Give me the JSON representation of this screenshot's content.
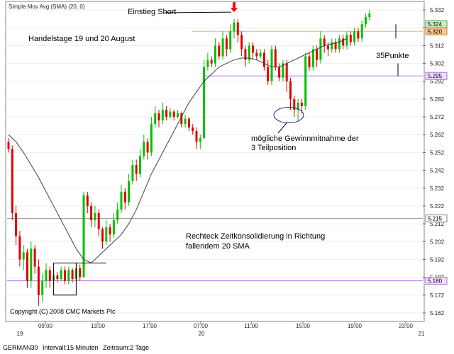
{
  "indicator_label": "Simple Mov Avg (SMA) (20, 0)",
  "copyright": "Copyright (C) 2008 CMC Markets Plc",
  "status_bar": {
    "symbol": "GERMAN30",
    "interval": "Intervall:15 Minuten",
    "period": "Zeitraum:2 Tage"
  },
  "annotations": {
    "entry": "Einstieg Short",
    "days": "Handelstage 19 und 20 August",
    "points": "35Punkte",
    "take_profit_1": "mögliche Gewinnmitnahme der",
    "take_profit_2": "3 Teilposition",
    "consolidation_1": "Rechteck Zeitkonsolidierung in Richtung",
    "consolidation_2": "fallendem 20 SMA"
  },
  "colors": {
    "up": "#00c000",
    "down": "#e00000",
    "sma": "#404040",
    "orange_line": "#f0b070",
    "purple_line": "#b070e0",
    "grey_line": "#a0a0a0",
    "blue_tag": "#cfe8ff",
    "arrow": "#ff0000"
  },
  "chart_data": {
    "type": "candlestick",
    "y_ticks": [
      5162,
      5172,
      5182,
      5192,
      5202,
      5212,
      5222,
      5232,
      5242,
      5252,
      5262,
      5272,
      5282,
      5292,
      5302,
      5312,
      5322,
      5332
    ],
    "ylim": [
      5158,
      5336
    ],
    "x_top_labels": [
      "09:00",
      "13:00",
      "17:00",
      "07:00",
      "11:00",
      "15:00",
      "19:00",
      "23:00"
    ],
    "x_bottom_labels": [
      "19",
      "20",
      "21"
    ],
    "price_tags": [
      {
        "value": 5324,
        "label": "5.324",
        "style": "green"
      },
      {
        "value": 5320,
        "label": "5.320",
        "style": "orange"
      },
      {
        "value": 5295,
        "label": "5.295",
        "style": "purple"
      },
      {
        "value": 5215,
        "label": "5.215",
        "style": "grey"
      },
      {
        "value": 5180,
        "label": "5.180",
        "style": "purple"
      }
    ],
    "horizontal_lines": [
      {
        "value": 5320,
        "style": "orange"
      },
      {
        "value": 5295,
        "style": "purple"
      },
      {
        "value": 5215,
        "style": "grey"
      },
      {
        "value": 5180,
        "style": "purple"
      }
    ],
    "candles": [
      [
        5258,
        5254,
        5260,
        5252
      ],
      [
        5254,
        5218,
        5256,
        5214
      ],
      [
        5218,
        5205,
        5222,
        5200
      ],
      [
        5205,
        5192,
        5208,
        5188
      ],
      [
        5192,
        5196,
        5200,
        5186
      ],
      [
        5196,
        5180,
        5198,
        5176
      ],
      [
        5180,
        5198,
        5202,
        5176
      ],
      [
        5198,
        5188,
        5200,
        5184
      ],
      [
        5188,
        5172,
        5192,
        5166
      ],
      [
        5172,
        5180,
        5184,
        5168
      ],
      [
        5180,
        5186,
        5190,
        5176
      ],
      [
        5186,
        5180,
        5188,
        5176
      ],
      [
        5180,
        5183,
        5186,
        5178
      ],
      [
        5183,
        5181,
        5185,
        5179
      ],
      [
        5181,
        5186,
        5188,
        5180
      ],
      [
        5186,
        5180,
        5188,
        5178
      ],
      [
        5180,
        5186,
        5188,
        5178
      ],
      [
        5186,
        5181,
        5187,
        5179
      ],
      [
        5181,
        5187,
        5190,
        5180
      ],
      [
        5187,
        5182,
        5189,
        5180
      ],
      [
        5182,
        5228,
        5230,
        5182
      ],
      [
        5228,
        5222,
        5230,
        5218
      ],
      [
        5222,
        5214,
        5224,
        5210
      ],
      [
        5214,
        5218,
        5222,
        5210
      ],
      [
        5218,
        5209,
        5220,
        5205
      ],
      [
        5209,
        5202,
        5210,
        5198
      ],
      [
        5202,
        5210,
        5214,
        5200
      ],
      [
        5210,
        5206,
        5212,
        5202
      ],
      [
        5206,
        5214,
        5218,
        5204
      ],
      [
        5214,
        5220,
        5224,
        5212
      ],
      [
        5220,
        5230,
        5234,
        5218
      ],
      [
        5230,
        5224,
        5232,
        5220
      ],
      [
        5224,
        5236,
        5240,
        5222
      ],
      [
        5236,
        5245,
        5248,
        5234
      ],
      [
        5245,
        5240,
        5248,
        5236
      ],
      [
        5240,
        5250,
        5254,
        5238
      ],
      [
        5250,
        5258,
        5262,
        5248
      ],
      [
        5258,
        5252,
        5260,
        5248
      ],
      [
        5252,
        5268,
        5272,
        5250
      ],
      [
        5268,
        5274,
        5278,
        5266
      ],
      [
        5274,
        5270,
        5276,
        5266
      ],
      [
        5270,
        5276,
        5280,
        5268
      ],
      [
        5276,
        5272,
        5278,
        5270
      ],
      [
        5272,
        5275,
        5277,
        5271
      ],
      [
        5275,
        5272,
        5276,
        5270
      ],
      [
        5272,
        5274,
        5276,
        5271
      ],
      [
        5274,
        5268,
        5275,
        5266
      ],
      [
        5268,
        5271,
        5273,
        5266
      ],
      [
        5271,
        5266,
        5272,
        5264
      ],
      [
        5266,
        5264,
        5268,
        5262
      ],
      [
        5264,
        5258,
        5266,
        5254
      ],
      [
        5258,
        5260,
        5262,
        5254
      ],
      [
        5260,
        5300,
        5304,
        5260
      ],
      [
        5300,
        5304,
        5308,
        5298
      ],
      [
        5304,
        5302,
        5306,
        5300
      ],
      [
        5302,
        5312,
        5316,
        5300
      ],
      [
        5312,
        5306,
        5314,
        5304
      ],
      [
        5306,
        5316,
        5320,
        5304
      ],
      [
        5316,
        5310,
        5318,
        5306
      ],
      [
        5310,
        5320,
        5324,
        5308
      ],
      [
        5320,
        5325,
        5327,
        5316
      ],
      [
        5325,
        5318,
        5327,
        5314
      ],
      [
        5318,
        5310,
        5320,
        5306
      ],
      [
        5310,
        5304,
        5312,
        5300
      ],
      [
        5304,
        5312,
        5314,
        5302
      ],
      [
        5312,
        5308,
        5314,
        5304
      ],
      [
        5308,
        5306,
        5310,
        5304
      ],
      [
        5306,
        5308,
        5310,
        5305
      ],
      [
        5308,
        5300,
        5310,
        5298
      ],
      [
        5300,
        5292,
        5304,
        5290
      ],
      [
        5292,
        5310,
        5312,
        5290
      ],
      [
        5310,
        5300,
        5312,
        5298
      ],
      [
        5300,
        5294,
        5302,
        5292
      ],
      [
        5294,
        5302,
        5304,
        5292
      ],
      [
        5302,
        5292,
        5304,
        5286
      ],
      [
        5292,
        5282,
        5294,
        5276
      ],
      [
        5282,
        5276,
        5284,
        5272
      ],
      [
        5276,
        5280,
        5282,
        5270
      ],
      [
        5280,
        5278,
        5282,
        5274
      ],
      [
        5278,
        5306,
        5308,
        5276
      ],
      [
        5306,
        5300,
        5308,
        5298
      ],
      [
        5300,
        5310,
        5312,
        5298
      ],
      [
        5310,
        5304,
        5312,
        5300
      ],
      [
        5304,
        5316,
        5320,
        5302
      ],
      [
        5316,
        5312,
        5318,
        5308
      ],
      [
        5312,
        5310,
        5314,
        5306
      ],
      [
        5310,
        5314,
        5316,
        5308
      ],
      [
        5314,
        5310,
        5316,
        5308
      ],
      [
        5310,
        5316,
        5318,
        5308
      ],
      [
        5316,
        5312,
        5318,
        5310
      ],
      [
        5312,
        5318,
        5320,
        5310
      ],
      [
        5318,
        5314,
        5320,
        5312
      ],
      [
        5314,
        5320,
        5322,
        5312
      ],
      [
        5320,
        5316,
        5322,
        5314
      ],
      [
        5316,
        5324,
        5326,
        5314
      ],
      [
        5324,
        5328,
        5330,
        5322
      ],
      [
        5328,
        5330,
        5332,
        5326
      ]
    ],
    "sma": [
      5262,
      5258,
      5252,
      5245,
      5238,
      5230,
      5222,
      5214,
      5206,
      5198,
      5192,
      5190,
      5194,
      5198,
      5202,
      5206,
      5212,
      5220,
      5230,
      5240,
      5248,
      5256,
      5264,
      5272,
      5280,
      5286,
      5292,
      5296,
      5300,
      5302,
      5304,
      5305,
      5305,
      5304,
      5302,
      5300,
      5300,
      5302,
      5304,
      5306,
      5308,
      5310,
      5312,
      5313,
      5314,
      5316
    ],
    "sma_start_index": 0,
    "sma_step": 2,
    "box": {
      "x_from": 12,
      "x_to": 18,
      "y_low": 5172,
      "y_high": 5190
    },
    "box_extension_to": 26,
    "box_extension_value": 5190,
    "entry_index": 60
  }
}
